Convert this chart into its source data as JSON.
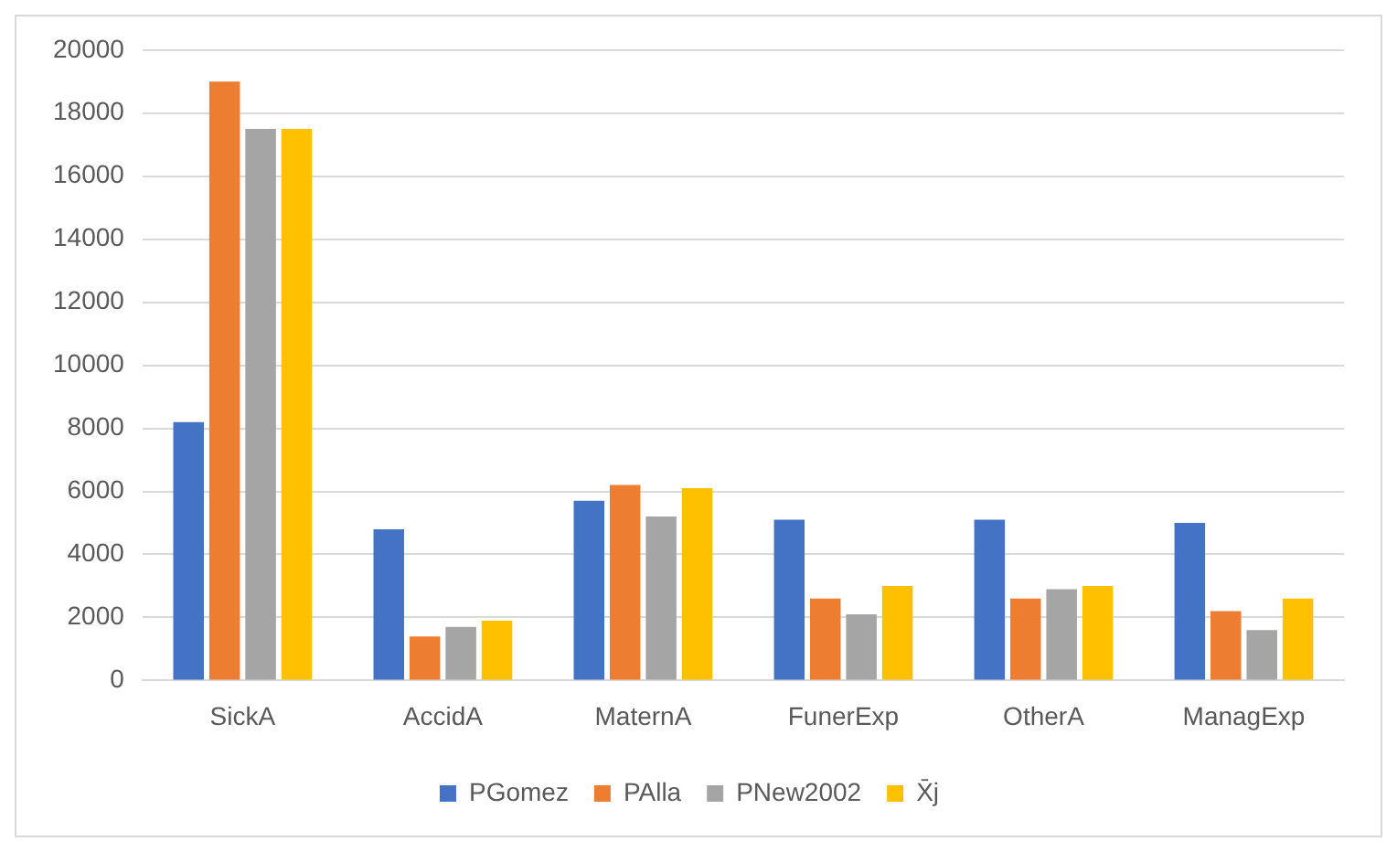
{
  "chart_data": {
    "type": "bar",
    "categories": [
      "SickA",
      "AccidA",
      "MaternA",
      "FunerExp",
      "OtherA",
      "ManagExp"
    ],
    "series": [
      {
        "name": "PGomez",
        "color": "#4472c4",
        "values": [
          8200,
          4800,
          5700,
          5100,
          5100,
          5000
        ]
      },
      {
        "name": "PAlla",
        "color": "#ed7d31",
        "values": [
          19000,
          1400,
          6200,
          2600,
          2600,
          2200
        ]
      },
      {
        "name": "PNew2002",
        "color": "#a5a5a5",
        "values": [
          17500,
          1700,
          5200,
          2100,
          2900,
          1600
        ]
      },
      {
        "name": "X̄j",
        "color": "#ffc000",
        "values": [
          17500,
          1900,
          6100,
          3000,
          3000,
          2600
        ]
      }
    ],
    "ylim": [
      0,
      20000
    ],
    "yticks": [
      0,
      2000,
      4000,
      6000,
      8000,
      10000,
      12000,
      14000,
      16000,
      18000,
      20000
    ],
    "grid": "y",
    "legend": "bottom"
  }
}
